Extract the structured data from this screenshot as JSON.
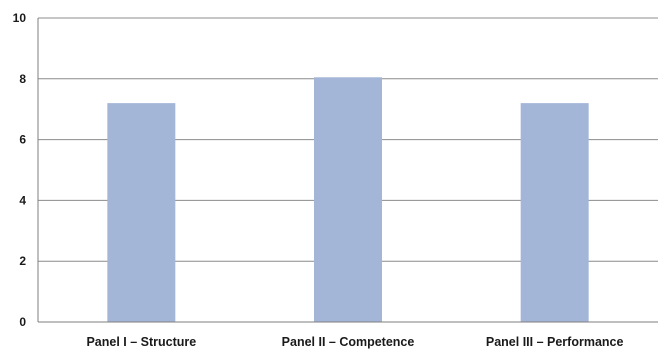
{
  "chart_data": {
    "type": "bar",
    "title": "",
    "xlabel": "",
    "ylabel": "",
    "categories": [
      "Panel I – Structure",
      "Panel II – Competence",
      "Panel III – Performance"
    ],
    "values": [
      7.2,
      8.05,
      7.2
    ],
    "ylim": [
      0,
      10
    ],
    "yticks": [
      "0",
      "2",
      "4",
      "6",
      "8",
      "10"
    ],
    "grid": true,
    "legend": "none",
    "bar_color": "#a4b6d8",
    "grid_color": "#8c8c8c",
    "axis_color": "#7f7f7f"
  }
}
